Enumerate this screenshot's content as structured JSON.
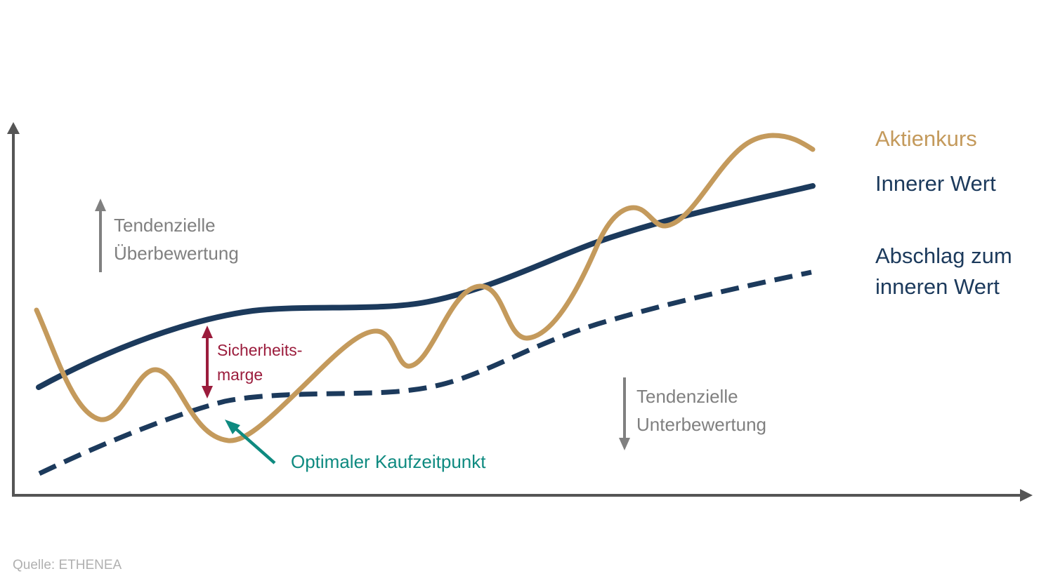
{
  "legend": {
    "stock_price": "Aktienkurs",
    "intrinsic_value": "Innerer Wert",
    "discount_line1": "Abschlag zum",
    "discount_line2": "inneren Wert"
  },
  "annotations": {
    "overvaluation_line1": "Tendenzielle",
    "overvaluation_line2": "Überbewertung",
    "undervaluation_line1": "Tendenzielle",
    "undervaluation_line2": "Unterbewertung",
    "safety_margin_line1": "Sicherheits-",
    "safety_margin_line2": "marge",
    "optimal_buy": "Optimaler Kaufzeitpunkt"
  },
  "source": "Quelle: ETHENEA",
  "colors": {
    "stock_price": "#c49a5c",
    "intrinsic_value": "#1c3a5c",
    "annotation_gray": "#808080",
    "safety_margin": "#9b1c3c",
    "optimal_buy": "#0e8a80",
    "axis": "#555555",
    "source": "#b0b0b0"
  },
  "icons": {
    "up_arrow": "arrow-up-icon",
    "down_arrow": "arrow-down-icon",
    "double_arrow": "double-arrow-vertical-icon",
    "pointer_arrow": "arrow-diagonal-icon"
  }
}
